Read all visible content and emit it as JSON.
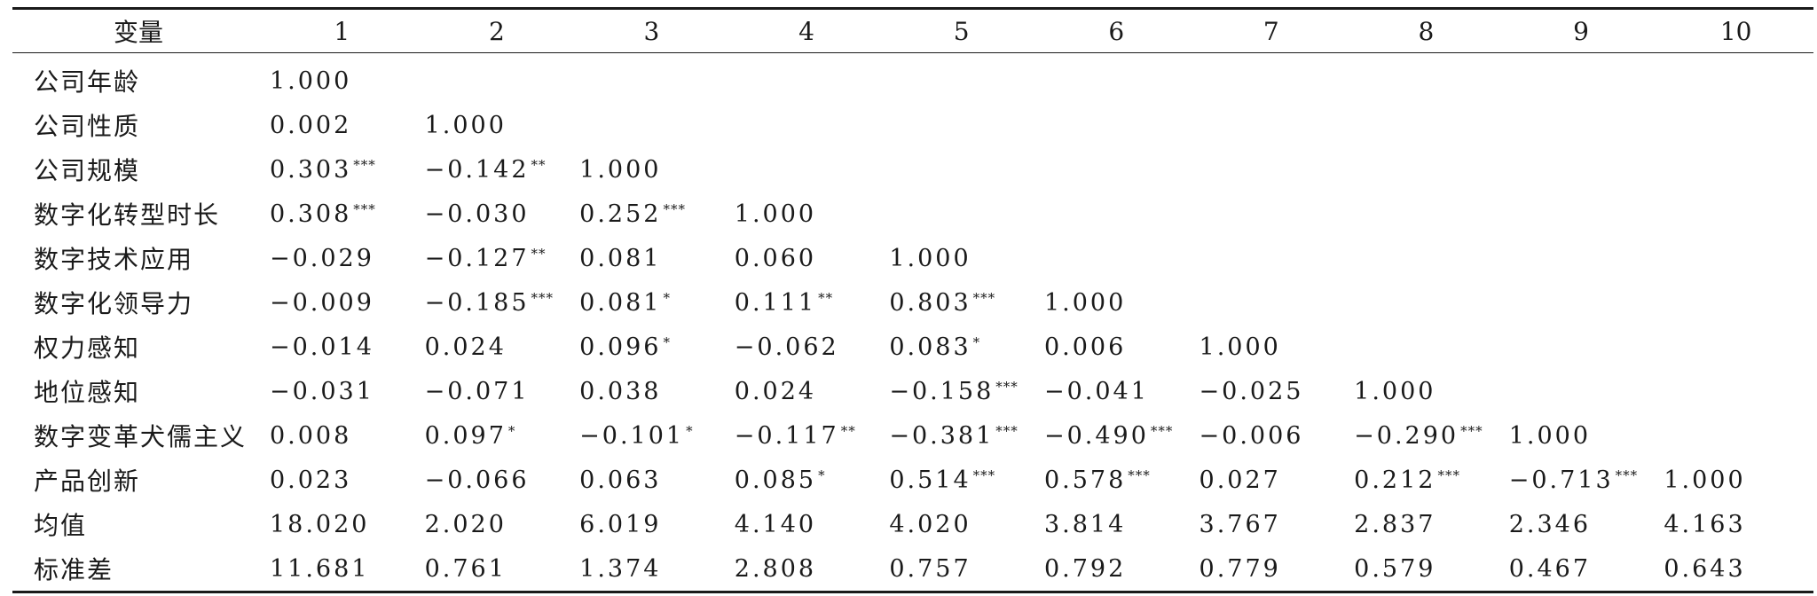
{
  "table": {
    "header": {
      "variable": "变量",
      "columns": [
        "1",
        "2",
        "3",
        "4",
        "5",
        "6",
        "7",
        "8",
        "9",
        "10"
      ]
    },
    "rows": [
      {
        "name": "公司年龄",
        "cells": [
          {
            "v": "1.000",
            "s": ""
          }
        ]
      },
      {
        "name": "公司性质",
        "cells": [
          {
            "v": "0.002",
            "s": ""
          },
          {
            "v": "1.000",
            "s": ""
          }
        ]
      },
      {
        "name": "公司规模",
        "cells": [
          {
            "v": "0.303",
            "s": "***"
          },
          {
            "v": "−0.142",
            "s": "**"
          },
          {
            "v": "1.000",
            "s": ""
          }
        ]
      },
      {
        "name": "数字化转型时长",
        "cells": [
          {
            "v": "0.308",
            "s": "***"
          },
          {
            "v": "−0.030",
            "s": ""
          },
          {
            "v": "0.252",
            "s": "***"
          },
          {
            "v": "1.000",
            "s": ""
          }
        ]
      },
      {
        "name": "数字技术应用",
        "cells": [
          {
            "v": "−0.029",
            "s": ""
          },
          {
            "v": "−0.127",
            "s": "**"
          },
          {
            "v": "0.081",
            "s": ""
          },
          {
            "v": "0.060",
            "s": ""
          },
          {
            "v": "1.000",
            "s": ""
          }
        ]
      },
      {
        "name": "数字化领导力",
        "cells": [
          {
            "v": "−0.009",
            "s": ""
          },
          {
            "v": "−0.185",
            "s": "***"
          },
          {
            "v": "0.081",
            "s": "*"
          },
          {
            "v": "0.111",
            "s": "**"
          },
          {
            "v": "0.803",
            "s": "***"
          },
          {
            "v": "1.000",
            "s": ""
          }
        ]
      },
      {
        "name": "权力感知",
        "cells": [
          {
            "v": "−0.014",
            "s": ""
          },
          {
            "v": "0.024",
            "s": ""
          },
          {
            "v": "0.096",
            "s": "*"
          },
          {
            "v": "−0.062",
            "s": ""
          },
          {
            "v": "0.083",
            "s": "*"
          },
          {
            "v": "0.006",
            "s": ""
          },
          {
            "v": "1.000",
            "s": ""
          }
        ]
      },
      {
        "name": "地位感知",
        "cells": [
          {
            "v": "−0.031",
            "s": ""
          },
          {
            "v": "−0.071",
            "s": ""
          },
          {
            "v": "0.038",
            "s": ""
          },
          {
            "v": "0.024",
            "s": ""
          },
          {
            "v": "−0.158",
            "s": "***"
          },
          {
            "v": "−0.041",
            "s": ""
          },
          {
            "v": "−0.025",
            "s": ""
          },
          {
            "v": "1.000",
            "s": ""
          }
        ]
      },
      {
        "name": "数字变革犬儒主义",
        "cells": [
          {
            "v": "0.008",
            "s": ""
          },
          {
            "v": "0.097",
            "s": "*"
          },
          {
            "v": "−0.101",
            "s": "*"
          },
          {
            "v": "−0.117",
            "s": "**"
          },
          {
            "v": "−0.381",
            "s": "***"
          },
          {
            "v": "−0.490",
            "s": "***"
          },
          {
            "v": "−0.006",
            "s": ""
          },
          {
            "v": "−0.290",
            "s": "***"
          },
          {
            "v": "1.000",
            "s": ""
          }
        ]
      },
      {
        "name": "产品创新",
        "cells": [
          {
            "v": "0.023",
            "s": ""
          },
          {
            "v": "−0.066",
            "s": ""
          },
          {
            "v": "0.063",
            "s": ""
          },
          {
            "v": "0.085",
            "s": "*"
          },
          {
            "v": "0.514",
            "s": "***"
          },
          {
            "v": "0.578",
            "s": "***"
          },
          {
            "v": "0.027",
            "s": ""
          },
          {
            "v": "0.212",
            "s": "***"
          },
          {
            "v": "−0.713",
            "s": "***"
          },
          {
            "v": "1.000",
            "s": ""
          }
        ]
      },
      {
        "name": "均值",
        "cells": [
          {
            "v": "18.020",
            "s": ""
          },
          {
            "v": "2.020",
            "s": ""
          },
          {
            "v": "6.019",
            "s": ""
          },
          {
            "v": "4.140",
            "s": ""
          },
          {
            "v": "4.020",
            "s": ""
          },
          {
            "v": "3.814",
            "s": ""
          },
          {
            "v": "3.767",
            "s": ""
          },
          {
            "v": "2.837",
            "s": ""
          },
          {
            "v": "2.346",
            "s": ""
          },
          {
            "v": "4.163",
            "s": ""
          }
        ]
      },
      {
        "name": "标准差",
        "cells": [
          {
            "v": "11.681",
            "s": ""
          },
          {
            "v": "0.761",
            "s": ""
          },
          {
            "v": "1.374",
            "s": ""
          },
          {
            "v": "2.808",
            "s": ""
          },
          {
            "v": "0.757",
            "s": ""
          },
          {
            "v": "0.792",
            "s": ""
          },
          {
            "v": "0.779",
            "s": ""
          },
          {
            "v": "0.579",
            "s": ""
          },
          {
            "v": "0.467",
            "s": ""
          },
          {
            "v": "0.643",
            "s": ""
          }
        ]
      }
    ]
  }
}
